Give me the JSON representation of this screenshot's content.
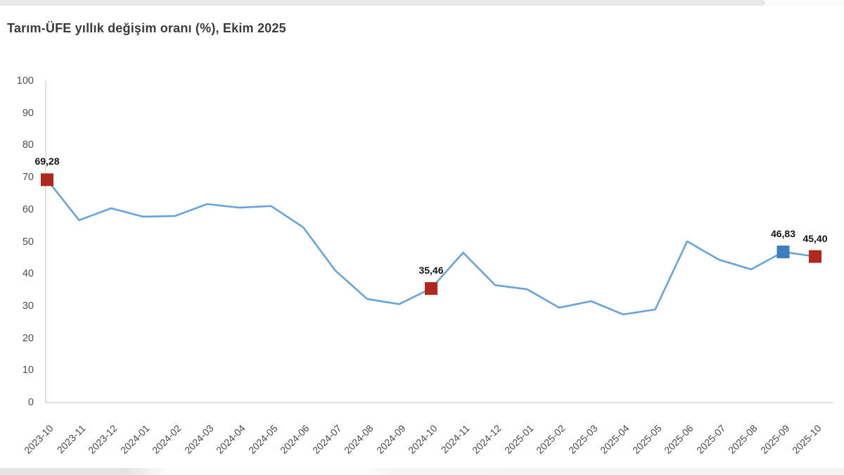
{
  "page": {
    "title": "Tarım-ÜFE yıllık değişim oranı (%), Ekim 2025"
  },
  "chart_data": {
    "type": "line",
    "title": "Tarım-ÜFE yıllık değişim oranı (%), Ekim 2025",
    "xlabel": "",
    "ylabel": "",
    "ylim": [
      0,
      100
    ],
    "y_ticks": [
      0,
      10,
      20,
      30,
      40,
      50,
      60,
      70,
      80,
      90,
      100
    ],
    "grid": false,
    "legend": "none",
    "categories": [
      "2023-10",
      "2023-11",
      "2023-12",
      "2024-01",
      "2024-02",
      "2024-03",
      "2024-04",
      "2024-05",
      "2024-06",
      "2024-07",
      "2024-08",
      "2024-09",
      "2024-10",
      "2024-11",
      "2024-12",
      "2025-01",
      "2025-02",
      "2025-03",
      "2025-04",
      "2025-05",
      "2025-06",
      "2025-07",
      "2025-08",
      "2025-09",
      "2025-10"
    ],
    "series": [
      {
        "name": "Tarım-ÜFE yıllık değişim oranı (%)",
        "values": [
          69.28,
          56.7,
          60.4,
          57.8,
          58.0,
          61.7,
          60.6,
          61.1,
          54.5,
          41.1,
          32.2,
          30.6,
          35.46,
          46.6,
          36.5,
          35.2,
          29.5,
          31.5,
          27.4,
          28.9,
          50.1,
          44.4,
          41.4,
          46.83,
          45.4
        ]
      }
    ],
    "marked_points": [
      {
        "category": "2023-10",
        "index": 0,
        "label": "69,28",
        "color": "#b0271e"
      },
      {
        "category": "2024-10",
        "index": 12,
        "label": "35,46",
        "color": "#b0271e"
      },
      {
        "category": "2025-09",
        "index": 23,
        "label": "46,83",
        "color": "#3d7ec0"
      },
      {
        "category": "2025-10",
        "index": 24,
        "label": "45,40",
        "color": "#b0271e"
      }
    ],
    "colors": {
      "line": "#68a4da",
      "marker_red": "#b0271e",
      "marker_blue": "#3d7ec0",
      "axis": "#d5d5d5",
      "tick_text": "#4a4a4a",
      "title_text": "#3b3b3b"
    }
  }
}
